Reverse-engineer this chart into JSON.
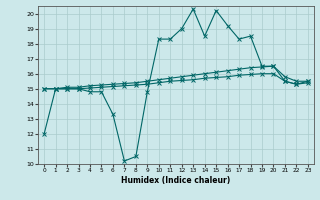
{
  "xlabel": "Humidex (Indice chaleur)",
  "ylabel": "",
  "background_color": "#cce8ea",
  "grid_color": "#aacccc",
  "line_color": "#006666",
  "xlim": [
    -0.5,
    23.5
  ],
  "ylim": [
    10,
    20.5
  ],
  "yticks": [
    10,
    11,
    12,
    13,
    14,
    15,
    16,
    17,
    18,
    19,
    20
  ],
  "xticks": [
    0,
    1,
    2,
    3,
    4,
    5,
    6,
    7,
    8,
    9,
    10,
    11,
    12,
    13,
    14,
    15,
    16,
    17,
    18,
    19,
    20,
    21,
    22,
    23
  ],
  "line1_x": [
    0,
    1,
    2,
    3,
    4,
    5,
    6,
    7,
    8,
    9,
    10,
    11,
    12,
    13,
    14,
    15,
    16,
    17,
    18,
    19,
    20,
    21,
    22,
    23
  ],
  "line1_y": [
    12,
    15,
    15,
    15,
    14.8,
    14.8,
    13.3,
    10.2,
    10.5,
    14.8,
    18.3,
    18.3,
    19.0,
    20.3,
    18.5,
    20.2,
    19.2,
    18.3,
    18.5,
    16.5,
    16.5,
    15.5,
    15.3,
    15.5
  ],
  "line2_x": [
    0,
    1,
    2,
    3,
    4,
    5,
    6,
    7,
    8,
    9,
    10,
    11,
    12,
    13,
    14,
    15,
    16,
    17,
    18,
    19,
    20,
    21,
    22,
    23
  ],
  "line2_y": [
    15.0,
    15.0,
    15.1,
    15.1,
    15.2,
    15.25,
    15.3,
    15.35,
    15.4,
    15.5,
    15.6,
    15.7,
    15.8,
    15.9,
    16.0,
    16.1,
    16.2,
    16.3,
    16.4,
    16.45,
    16.5,
    15.8,
    15.5,
    15.5
  ],
  "line3_x": [
    0,
    1,
    2,
    3,
    4,
    5,
    6,
    7,
    8,
    9,
    10,
    11,
    12,
    13,
    14,
    15,
    16,
    17,
    18,
    19,
    20,
    21,
    22,
    23
  ],
  "line3_y": [
    15.0,
    15.0,
    15.0,
    15.0,
    15.05,
    15.1,
    15.15,
    15.2,
    15.25,
    15.3,
    15.4,
    15.5,
    15.55,
    15.6,
    15.7,
    15.75,
    15.8,
    15.9,
    15.95,
    16.0,
    16.0,
    15.5,
    15.3,
    15.4
  ]
}
